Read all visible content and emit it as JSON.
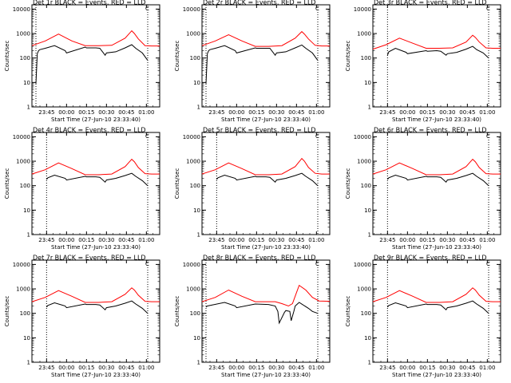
{
  "colors": {
    "events": "#000000",
    "lld": "#ff0000",
    "axis": "#000000",
    "background": "#ffffff"
  },
  "common": {
    "ylabel": "Counts/sec",
    "xlabel": "Start Time (27-Jun-10 23:33:40)",
    "xticks": [
      "23:45",
      "00:00",
      "00:15",
      "00:30",
      "00:45",
      "01:00"
    ],
    "yticks": [
      "1",
      "10",
      "100",
      "1000",
      "10000"
    ]
  },
  "chart_data": [
    {
      "type": "line",
      "title": "Det 1r BLACK = Events, RED = LLD",
      "corner_mark": "C",
      "x_unit": "minutes after 23:33:40",
      "xlim": [
        0,
        96
      ],
      "ylim": [
        1,
        15000
      ],
      "yscale": "log",
      "vlines": [
        3,
        87
      ],
      "series": [
        {
          "name": "LLD",
          "color": "#ff0000",
          "x": [
            0,
            10,
            20,
            30,
            40,
            50,
            60,
            70,
            75,
            77,
            80,
            85,
            90,
            96
          ],
          "y": [
            320,
            500,
            950,
            500,
            320,
            320,
            330,
            650,
            1300,
            1000,
            600,
            320,
            310,
            310
          ]
        },
        {
          "name": "Events",
          "color": "#000000",
          "x": [
            3,
            4,
            5,
            6,
            10,
            17,
            25,
            26,
            40,
            41,
            48,
            51,
            55,
            56,
            63,
            70,
            75,
            78,
            83,
            87
          ],
          "y": [
            9,
            150,
            200,
            220,
            250,
            320,
            200,
            160,
            280,
            260,
            260,
            250,
            130,
            160,
            180,
            260,
            350,
            250,
            160,
            80
          ]
        }
      ]
    },
    {
      "type": "line",
      "title": "Det 2r BLACK = Events, RED = LLD",
      "corner_mark": "C",
      "x_unit": "minutes after 23:33:40",
      "xlim": [
        0,
        96
      ],
      "ylim": [
        1,
        15000
      ],
      "yscale": "log",
      "vlines": [
        3,
        87
      ],
      "series": [
        {
          "name": "LLD",
          "color": "#ff0000",
          "x": [
            0,
            10,
            20,
            30,
            40,
            50,
            60,
            70,
            75,
            77,
            80,
            85,
            90,
            96
          ],
          "y": [
            320,
            500,
            900,
            500,
            300,
            300,
            320,
            650,
            1200,
            950,
            600,
            330,
            310,
            310
          ]
        },
        {
          "name": "Events",
          "color": "#000000",
          "x": [
            3,
            4,
            5,
            6,
            10,
            17,
            25,
            26,
            40,
            41,
            48,
            51,
            55,
            56,
            63,
            70,
            75,
            78,
            83,
            87
          ],
          "y": [
            9,
            150,
            200,
            220,
            250,
            320,
            200,
            160,
            260,
            250,
            250,
            250,
            130,
            160,
            180,
            260,
            340,
            250,
            160,
            80
          ]
        }
      ]
    },
    {
      "type": "line",
      "title": "Det 3r BLACK = Events, RED = LLD",
      "corner_mark": "C",
      "x_unit": "minutes after 23:33:40",
      "xlim": [
        0,
        96
      ],
      "ylim": [
        1,
        15000
      ],
      "yscale": "log",
      "vlines": [
        11,
        87
      ],
      "series": [
        {
          "name": "LLD",
          "color": "#ff0000",
          "x": [
            0,
            10,
            20,
            30,
            40,
            50,
            60,
            70,
            75,
            77,
            80,
            85,
            90,
            96
          ],
          "y": [
            230,
            350,
            650,
            400,
            250,
            250,
            260,
            450,
            850,
            700,
            450,
            260,
            250,
            250
          ]
        },
        {
          "name": "Events",
          "color": "#000000",
          "x": [
            11,
            12,
            17,
            25,
            26,
            40,
            41,
            48,
            51,
            55,
            56,
            63,
            70,
            75,
            78,
            83,
            87
          ],
          "y": [
            130,
            180,
            250,
            170,
            150,
            200,
            190,
            200,
            190,
            130,
            150,
            170,
            230,
            300,
            220,
            160,
            100
          ]
        }
      ]
    },
    {
      "type": "line",
      "title": "Det 4r BLACK = Events, RED = LLD",
      "corner_mark": "C",
      "x_unit": "minutes after 23:33:40",
      "xlim": [
        0,
        96
      ],
      "ylim": [
        1,
        15000
      ],
      "yscale": "log",
      "vlines": [
        11,
        87
      ],
      "series": [
        {
          "name": "LLD",
          "color": "#ff0000",
          "x": [
            0,
            10,
            20,
            30,
            40,
            50,
            60,
            70,
            75,
            77,
            80,
            85,
            90,
            96
          ],
          "y": [
            300,
            450,
            850,
            500,
            280,
            280,
            300,
            600,
            1200,
            950,
            550,
            310,
            300,
            300
          ]
        },
        {
          "name": "Events",
          "color": "#000000",
          "x": [
            11,
            12,
            17,
            25,
            26,
            40,
            41,
            48,
            51,
            55,
            56,
            63,
            70,
            75,
            78,
            83,
            87
          ],
          "y": [
            180,
            210,
            270,
            200,
            170,
            240,
            230,
            230,
            220,
            140,
            170,
            200,
            260,
            320,
            240,
            160,
            100
          ]
        }
      ]
    },
    {
      "type": "line",
      "title": "Det 5r BLACK = Events, RED = LLD",
      "corner_mark": "C",
      "x_unit": "minutes after 23:33:40",
      "xlim": [
        0,
        96
      ],
      "ylim": [
        1,
        15000
      ],
      "yscale": "log",
      "vlines": [
        11,
        87
      ],
      "series": [
        {
          "name": "LLD",
          "color": "#ff0000",
          "x": [
            0,
            10,
            20,
            30,
            40,
            50,
            60,
            70,
            75,
            77,
            80,
            85,
            90,
            96
          ],
          "y": [
            300,
            450,
            850,
            500,
            280,
            280,
            300,
            600,
            1300,
            1000,
            560,
            320,
            300,
            300
          ]
        },
        {
          "name": "Events",
          "color": "#000000",
          "x": [
            11,
            12,
            17,
            25,
            26,
            40,
            41,
            48,
            51,
            55,
            56,
            63,
            70,
            75,
            78,
            83,
            87
          ],
          "y": [
            180,
            210,
            270,
            200,
            170,
            240,
            230,
            230,
            220,
            140,
            170,
            200,
            260,
            320,
            240,
            160,
            100
          ]
        }
      ]
    },
    {
      "type": "line",
      "title": "Det 6r BLACK = Events, RED = LLD",
      "corner_mark": "C",
      "x_unit": "minutes after 23:33:40",
      "xlim": [
        0,
        96
      ],
      "ylim": [
        1,
        15000
      ],
      "yscale": "log",
      "vlines": [
        11,
        87
      ],
      "series": [
        {
          "name": "LLD",
          "color": "#ff0000",
          "x": [
            0,
            10,
            20,
            30,
            40,
            50,
            60,
            70,
            75,
            77,
            80,
            85,
            90,
            96
          ],
          "y": [
            300,
            450,
            850,
            500,
            280,
            280,
            300,
            600,
            1200,
            950,
            550,
            310,
            300,
            300
          ]
        },
        {
          "name": "Events",
          "color": "#000000",
          "x": [
            11,
            12,
            17,
            25,
            26,
            40,
            41,
            48,
            51,
            55,
            56,
            63,
            70,
            75,
            78,
            83,
            87
          ],
          "y": [
            180,
            210,
            270,
            200,
            170,
            240,
            230,
            230,
            220,
            140,
            170,
            200,
            260,
            320,
            240,
            160,
            100
          ]
        }
      ]
    },
    {
      "type": "line",
      "title": "Det 7r BLACK = Events, RED = LLD",
      "corner_mark": "C",
      "x_unit": "minutes after 23:33:40",
      "xlim": [
        0,
        96
      ],
      "ylim": [
        1,
        15000
      ],
      "yscale": "log",
      "vlines": [
        11,
        87
      ],
      "series": [
        {
          "name": "LLD",
          "color": "#ff0000",
          "x": [
            0,
            10,
            20,
            30,
            40,
            50,
            60,
            70,
            75,
            77,
            80,
            85,
            90,
            96
          ],
          "y": [
            300,
            450,
            850,
            500,
            280,
            280,
            300,
            600,
            1100,
            900,
            550,
            310,
            300,
            300
          ]
        },
        {
          "name": "Events",
          "color": "#000000",
          "x": [
            11,
            12,
            17,
            25,
            26,
            40,
            41,
            48,
            51,
            55,
            56,
            63,
            70,
            75,
            78,
            83,
            87
          ],
          "y": [
            180,
            210,
            270,
            200,
            170,
            240,
            230,
            230,
            220,
            140,
            170,
            200,
            260,
            320,
            240,
            160,
            100
          ]
        }
      ]
    },
    {
      "type": "line",
      "title": "Det 8r BLACK = Events, RED = LLD",
      "corner_mark": "C",
      "x_unit": "minutes after 23:33:40",
      "xlim": [
        0,
        96
      ],
      "ylim": [
        1,
        15000
      ],
      "yscale": "log",
      "vlines": [
        3,
        87
      ],
      "series": [
        {
          "name": "LLD",
          "color": "#ff0000",
          "x": [
            0,
            10,
            20,
            30,
            40,
            50,
            55,
            60,
            65,
            68,
            71,
            73,
            78,
            83,
            88,
            96
          ],
          "y": [
            300,
            450,
            900,
            500,
            300,
            300,
            300,
            250,
            200,
            250,
            700,
            1400,
            900,
            450,
            320,
            310
          ]
        },
        {
          "name": "Events",
          "color": "#000000",
          "x": [
            3,
            4,
            17,
            25,
            26,
            40,
            50,
            55,
            57,
            58,
            62,
            63,
            66,
            67,
            69,
            70,
            73,
            80,
            83,
            87
          ],
          "y": [
            180,
            200,
            280,
            200,
            170,
            240,
            230,
            200,
            120,
            40,
            110,
            130,
            120,
            50,
            120,
            200,
            280,
            160,
            120,
            100
          ]
        }
      ]
    },
    {
      "type": "line",
      "title": "Det 9r BLACK = Events, RED = LLD",
      "corner_mark": "C",
      "x_unit": "minutes after 23:33:40",
      "xlim": [
        0,
        96
      ],
      "ylim": [
        1,
        15000
      ],
      "yscale": "log",
      "vlines": [
        11,
        87
      ],
      "series": [
        {
          "name": "LLD",
          "color": "#ff0000",
          "x": [
            0,
            10,
            20,
            30,
            40,
            50,
            60,
            70,
            75,
            77,
            80,
            85,
            90,
            96
          ],
          "y": [
            300,
            450,
            850,
            500,
            280,
            280,
            300,
            600,
            1100,
            900,
            550,
            310,
            300,
            300
          ]
        },
        {
          "name": "Events",
          "color": "#000000",
          "x": [
            11,
            12,
            17,
            25,
            26,
            40,
            41,
            48,
            51,
            55,
            56,
            63,
            70,
            75,
            78,
            83,
            87
          ],
          "y": [
            180,
            210,
            270,
            200,
            170,
            240,
            230,
            230,
            220,
            140,
            170,
            200,
            260,
            320,
            240,
            160,
            100
          ]
        }
      ]
    }
  ]
}
